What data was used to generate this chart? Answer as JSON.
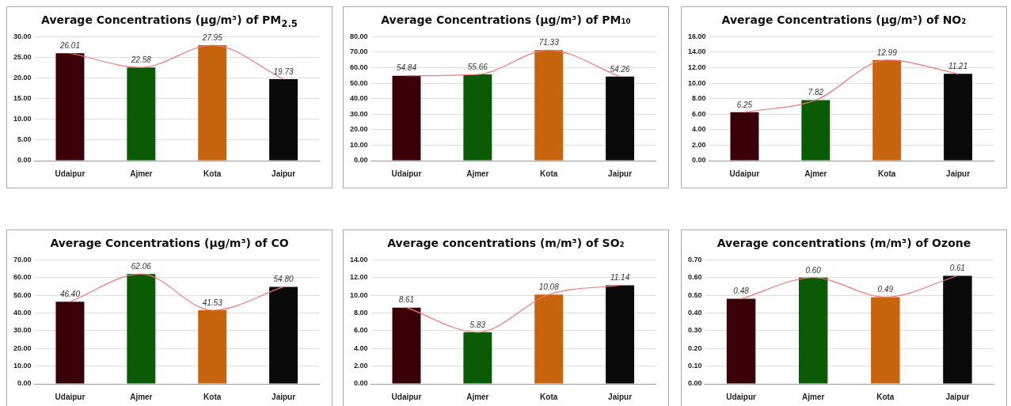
{
  "chart_data": [
    {
      "type": "bar",
      "title": "Average Concentrations (µg/m³) of PM$_{2.5}$",
      "categories": [
        "Udaipur",
        "Ajmer",
        "Kota",
        "Jaipur"
      ],
      "series": [
        {
          "colors": [
            "#3a0008",
            "#0b5a06",
            "#c8630e",
            "#0a0a0a"
          ],
          "values": [
            26.01,
            22.58,
            27.95,
            19.73
          ],
          "value_labels": [
            "26.01",
            "22.58",
            "27.95",
            "19.73"
          ]
        },
        {
          "type": "line",
          "color": "#f07878",
          "values": [
            26.01,
            22.58,
            27.95,
            19.73
          ]
        }
      ],
      "ylim": [
        0,
        30
      ],
      "yticks": [
        {
          "value": 0,
          "label": "0.00"
        },
        {
          "value": 5,
          "label": "5.00"
        },
        {
          "value": 10,
          "label": "10.00"
        },
        {
          "value": 15,
          "label": "15.00"
        },
        {
          "value": 20,
          "label": "20.00"
        },
        {
          "value": 25,
          "label": "25.00"
        },
        {
          "value": 30,
          "label": "30.00"
        }
      ],
      "grid": "y",
      "marker": "none"
    },
    {
      "type": "bar",
      "title": "Average Concentrations (µg/m³) of PM₁₀",
      "categories": [
        "Udaipur",
        "Ajmer",
        "Kota",
        "Jaipur"
      ],
      "series": [
        {
          "colors": [
            "#3a0008",
            "#0b5a06",
            "#c8630e",
            "#0a0a0a"
          ],
          "values": [
            54.84,
            55.66,
            71.33,
            54.26
          ],
          "value_labels": [
            "54.84",
            "55.66",
            "71.33",
            "54.26"
          ]
        },
        {
          "type": "line",
          "color": "#f07878",
          "values": [
            54.84,
            55.66,
            71.33,
            54.26
          ]
        }
      ],
      "ylim": [
        0,
        80
      ],
      "yticks": [
        {
          "value": 0,
          "label": "0.00"
        },
        {
          "value": 10,
          "label": "10.00"
        },
        {
          "value": 20,
          "label": "20.00"
        },
        {
          "value": 30,
          "label": "30.00"
        },
        {
          "value": 40,
          "label": "40.00"
        },
        {
          "value": 50,
          "label": "50.00"
        },
        {
          "value": 60,
          "label": "60.00"
        },
        {
          "value": 70,
          "label": "70.00"
        },
        {
          "value": 80,
          "label": "80.00"
        }
      ],
      "grid": "y",
      "marker": "none"
    },
    {
      "type": "bar",
      "title": "Average Concentrations (µg/m³) of NO₂",
      "categories": [
        "Udaipur",
        "Ajmer",
        "Kota",
        "Jaipur"
      ],
      "series": [
        {
          "colors": [
            "#3a0008",
            "#0b5a06",
            "#c8630e",
            "#0a0a0a"
          ],
          "values": [
            6.25,
            7.82,
            12.99,
            11.21
          ],
          "value_labels": [
            "6.25",
            "7.82",
            "12.99",
            "11.21"
          ]
        },
        {
          "type": "line",
          "color": "#f07878",
          "values": [
            6.25,
            7.82,
            12.99,
            11.21
          ]
        }
      ],
      "ylim": [
        0,
        16
      ],
      "yticks": [
        {
          "value": 0,
          "label": "0.00"
        },
        {
          "value": 2,
          "label": "2.00"
        },
        {
          "value": 4,
          "label": "4.00"
        },
        {
          "value": 6,
          "label": "6.00"
        },
        {
          "value": 8,
          "label": "8.00"
        },
        {
          "value": 10,
          "label": "10.00"
        },
        {
          "value": 12,
          "label": "12.00"
        },
        {
          "value": 14,
          "label": "14.00"
        },
        {
          "value": 16,
          "label": "16.00"
        }
      ],
      "grid": "y",
      "marker": "none"
    },
    {
      "type": "bar",
      "title": "Average Concentrations (µg/m³) of CO",
      "categories": [
        "Udaipur",
        "Ajmer",
        "Kota",
        "Jaipur"
      ],
      "series": [
        {
          "colors": [
            "#3a0008",
            "#0b5a06",
            "#c8630e",
            "#0a0a0a"
          ],
          "values": [
            46.4,
            62.06,
            41.53,
            54.8
          ],
          "value_labels": [
            "46.40",
            "62.06",
            "41.53",
            "54.80"
          ]
        },
        {
          "type": "line",
          "color": "#f07878",
          "values": [
            46.4,
            62.06,
            41.53,
            54.8
          ]
        }
      ],
      "ylim": [
        0,
        70
      ],
      "yticks": [
        {
          "value": 0,
          "label": "0.00"
        },
        {
          "value": 10,
          "label": "10.00"
        },
        {
          "value": 20,
          "label": "20.00"
        },
        {
          "value": 30,
          "label": "30.00"
        },
        {
          "value": 40,
          "label": "40.00"
        },
        {
          "value": 50,
          "label": "50.00"
        },
        {
          "value": 60,
          "label": "60.00"
        },
        {
          "value": 70,
          "label": "70.00"
        }
      ],
      "grid": "y",
      "marker": "none"
    },
    {
      "type": "bar",
      "title": "Average concentrations (m/m³) of SO₂",
      "categories": [
        "Udaipur",
        "Ajmer",
        "Kota",
        "Jaipur"
      ],
      "series": [
        {
          "colors": [
            "#3a0008",
            "#0b5a06",
            "#c8630e",
            "#0a0a0a"
          ],
          "values": [
            8.61,
            5.83,
            10.08,
            11.14
          ],
          "value_labels": [
            "8.61",
            "5.83",
            "10.08",
            "11.14"
          ]
        },
        {
          "type": "line",
          "color": "#f07878",
          "values": [
            8.61,
            5.83,
            10.08,
            11.14
          ]
        }
      ],
      "ylim": [
        0,
        14
      ],
      "yticks": [
        {
          "value": 0,
          "label": "0.00"
        },
        {
          "value": 2,
          "label": "2.00"
        },
        {
          "value": 4,
          "label": "4.00"
        },
        {
          "value": 6,
          "label": "6.00"
        },
        {
          "value": 8,
          "label": "8.00"
        },
        {
          "value": 10,
          "label": "10.00"
        },
        {
          "value": 12,
          "label": "12.00"
        },
        {
          "value": 14,
          "label": "14.00"
        }
      ],
      "grid": "y",
      "marker": "none"
    },
    {
      "type": "bar",
      "title": "Average concentrations (m/m³) of Ozone",
      "categories": [
        "Udaipur",
        "Ajmer",
        "Kota",
        "Jaipur"
      ],
      "series": [
        {
          "colors": [
            "#3a0008",
            "#0b5a06",
            "#c8630e",
            "#0a0a0a"
          ],
          "values": [
            0.48,
            0.6,
            0.49,
            0.61
          ],
          "value_labels": [
            "0.48",
            "0.60",
            "0.49",
            "0.61"
          ]
        },
        {
          "type": "line",
          "color": "#f07878",
          "values": [
            0.48,
            0.6,
            0.49,
            0.61
          ]
        }
      ],
      "ylim": [
        0,
        0.7
      ],
      "yticks": [
        {
          "value": 0,
          "label": "0.00"
        },
        {
          "value": 0.1,
          "label": "0.10"
        },
        {
          "value": 0.2,
          "label": "0.20"
        },
        {
          "value": 0.3,
          "label": "0.30"
        },
        {
          "value": 0.4,
          "label": "0.40"
        },
        {
          "value": 0.5,
          "label": "0.50"
        },
        {
          "value": 0.6,
          "label": "0.60"
        },
        {
          "value": 0.7,
          "label": "0.70"
        }
      ],
      "grid": "y",
      "marker": "none"
    }
  ]
}
